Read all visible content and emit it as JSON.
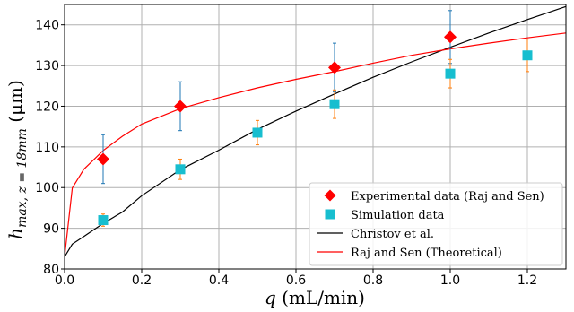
{
  "chart_data": {
    "type": "scatter",
    "xlabel": "q (mL/min)",
    "ylabel": "h_max, z=18mm (μm)",
    "xlim": [
      0.0,
      1.3
    ],
    "ylim": [
      80,
      145
    ],
    "x_ticks": [
      0.0,
      0.2,
      0.4,
      0.6,
      0.8,
      1.0,
      1.2
    ],
    "y_ticks": [
      80,
      90,
      100,
      110,
      120,
      130,
      140
    ],
    "x_tick_labels": [
      "0.0",
      "0.2",
      "0.4",
      "0.6",
      "0.8",
      "1.0",
      "1.2"
    ],
    "y_tick_labels": [
      "80",
      "90",
      "100",
      "110",
      "120",
      "130",
      "140"
    ],
    "grid": true,
    "legend_position": "bottom-right",
    "series": [
      {
        "name": "Experimental data (Raj and Sen)",
        "kind": "scatter",
        "marker": "diamond",
        "color": "#ff0000",
        "error_color": "#1f77b4",
        "points": [
          {
            "x": 0.1,
            "y": 107.0,
            "err": 6.0
          },
          {
            "x": 0.3,
            "y": 120.0,
            "err": 6.0
          },
          {
            "x": 0.7,
            "y": 129.5,
            "err": 6.0
          },
          {
            "x": 1.0,
            "y": 137.0,
            "err": 6.5
          }
        ]
      },
      {
        "name": "Simulation data",
        "kind": "scatter",
        "marker": "square",
        "color": "#17becf",
        "error_color": "#ff7f0e",
        "points": [
          {
            "x": 0.1,
            "y": 92.0,
            "err": 1.5
          },
          {
            "x": 0.3,
            "y": 104.5,
            "err": 2.5
          },
          {
            "x": 0.5,
            "y": 113.5,
            "err": 3.0
          },
          {
            "x": 0.7,
            "y": 120.5,
            "err": 3.5
          },
          {
            "x": 1.0,
            "y": 128.0,
            "err": 3.5
          },
          {
            "x": 1.2,
            "y": 132.5,
            "err": 4.0
          }
        ]
      },
      {
        "name": "Christov et al.",
        "kind": "line",
        "color": "#000000",
        "points": [
          {
            "x": 0.0,
            "y": 83.0
          },
          {
            "x": 0.02,
            "y": 86.1
          },
          {
            "x": 0.05,
            "y": 88.0
          },
          {
            "x": 0.1,
            "y": 91.2
          },
          {
            "x": 0.15,
            "y": 94.0
          },
          {
            "x": 0.2,
            "y": 98.0
          },
          {
            "x": 0.3,
            "y": 104.4
          },
          {
            "x": 0.4,
            "y": 109.2
          },
          {
            "x": 0.5,
            "y": 114.3
          },
          {
            "x": 0.6,
            "y": 118.8
          },
          {
            "x": 0.7,
            "y": 123.0
          },
          {
            "x": 0.8,
            "y": 127.1
          },
          {
            "x": 0.9,
            "y": 130.9
          },
          {
            "x": 1.0,
            "y": 134.5
          },
          {
            "x": 1.1,
            "y": 138.0
          },
          {
            "x": 1.2,
            "y": 141.3
          },
          {
            "x": 1.3,
            "y": 144.5
          }
        ]
      },
      {
        "name": "Raj and Sen (Theoretical)",
        "kind": "line",
        "color": "#ff0000",
        "points": [
          {
            "x": 0.0,
            "y": 83.0
          },
          {
            "x": 0.02,
            "y": 99.9
          },
          {
            "x": 0.05,
            "y": 104.5
          },
          {
            "x": 0.1,
            "y": 109.1
          },
          {
            "x": 0.15,
            "y": 112.6
          },
          {
            "x": 0.2,
            "y": 115.6
          },
          {
            "x": 0.3,
            "y": 119.4
          },
          {
            "x": 0.4,
            "y": 122.1
          },
          {
            "x": 0.5,
            "y": 124.5
          },
          {
            "x": 0.6,
            "y": 126.6
          },
          {
            "x": 0.7,
            "y": 128.5
          },
          {
            "x": 0.8,
            "y": 130.6
          },
          {
            "x": 0.9,
            "y": 132.5
          },
          {
            "x": 1.0,
            "y": 134.1
          },
          {
            "x": 1.1,
            "y": 135.5
          },
          {
            "x": 1.2,
            "y": 136.8
          },
          {
            "x": 1.3,
            "y": 138.0
          }
        ]
      }
    ]
  }
}
